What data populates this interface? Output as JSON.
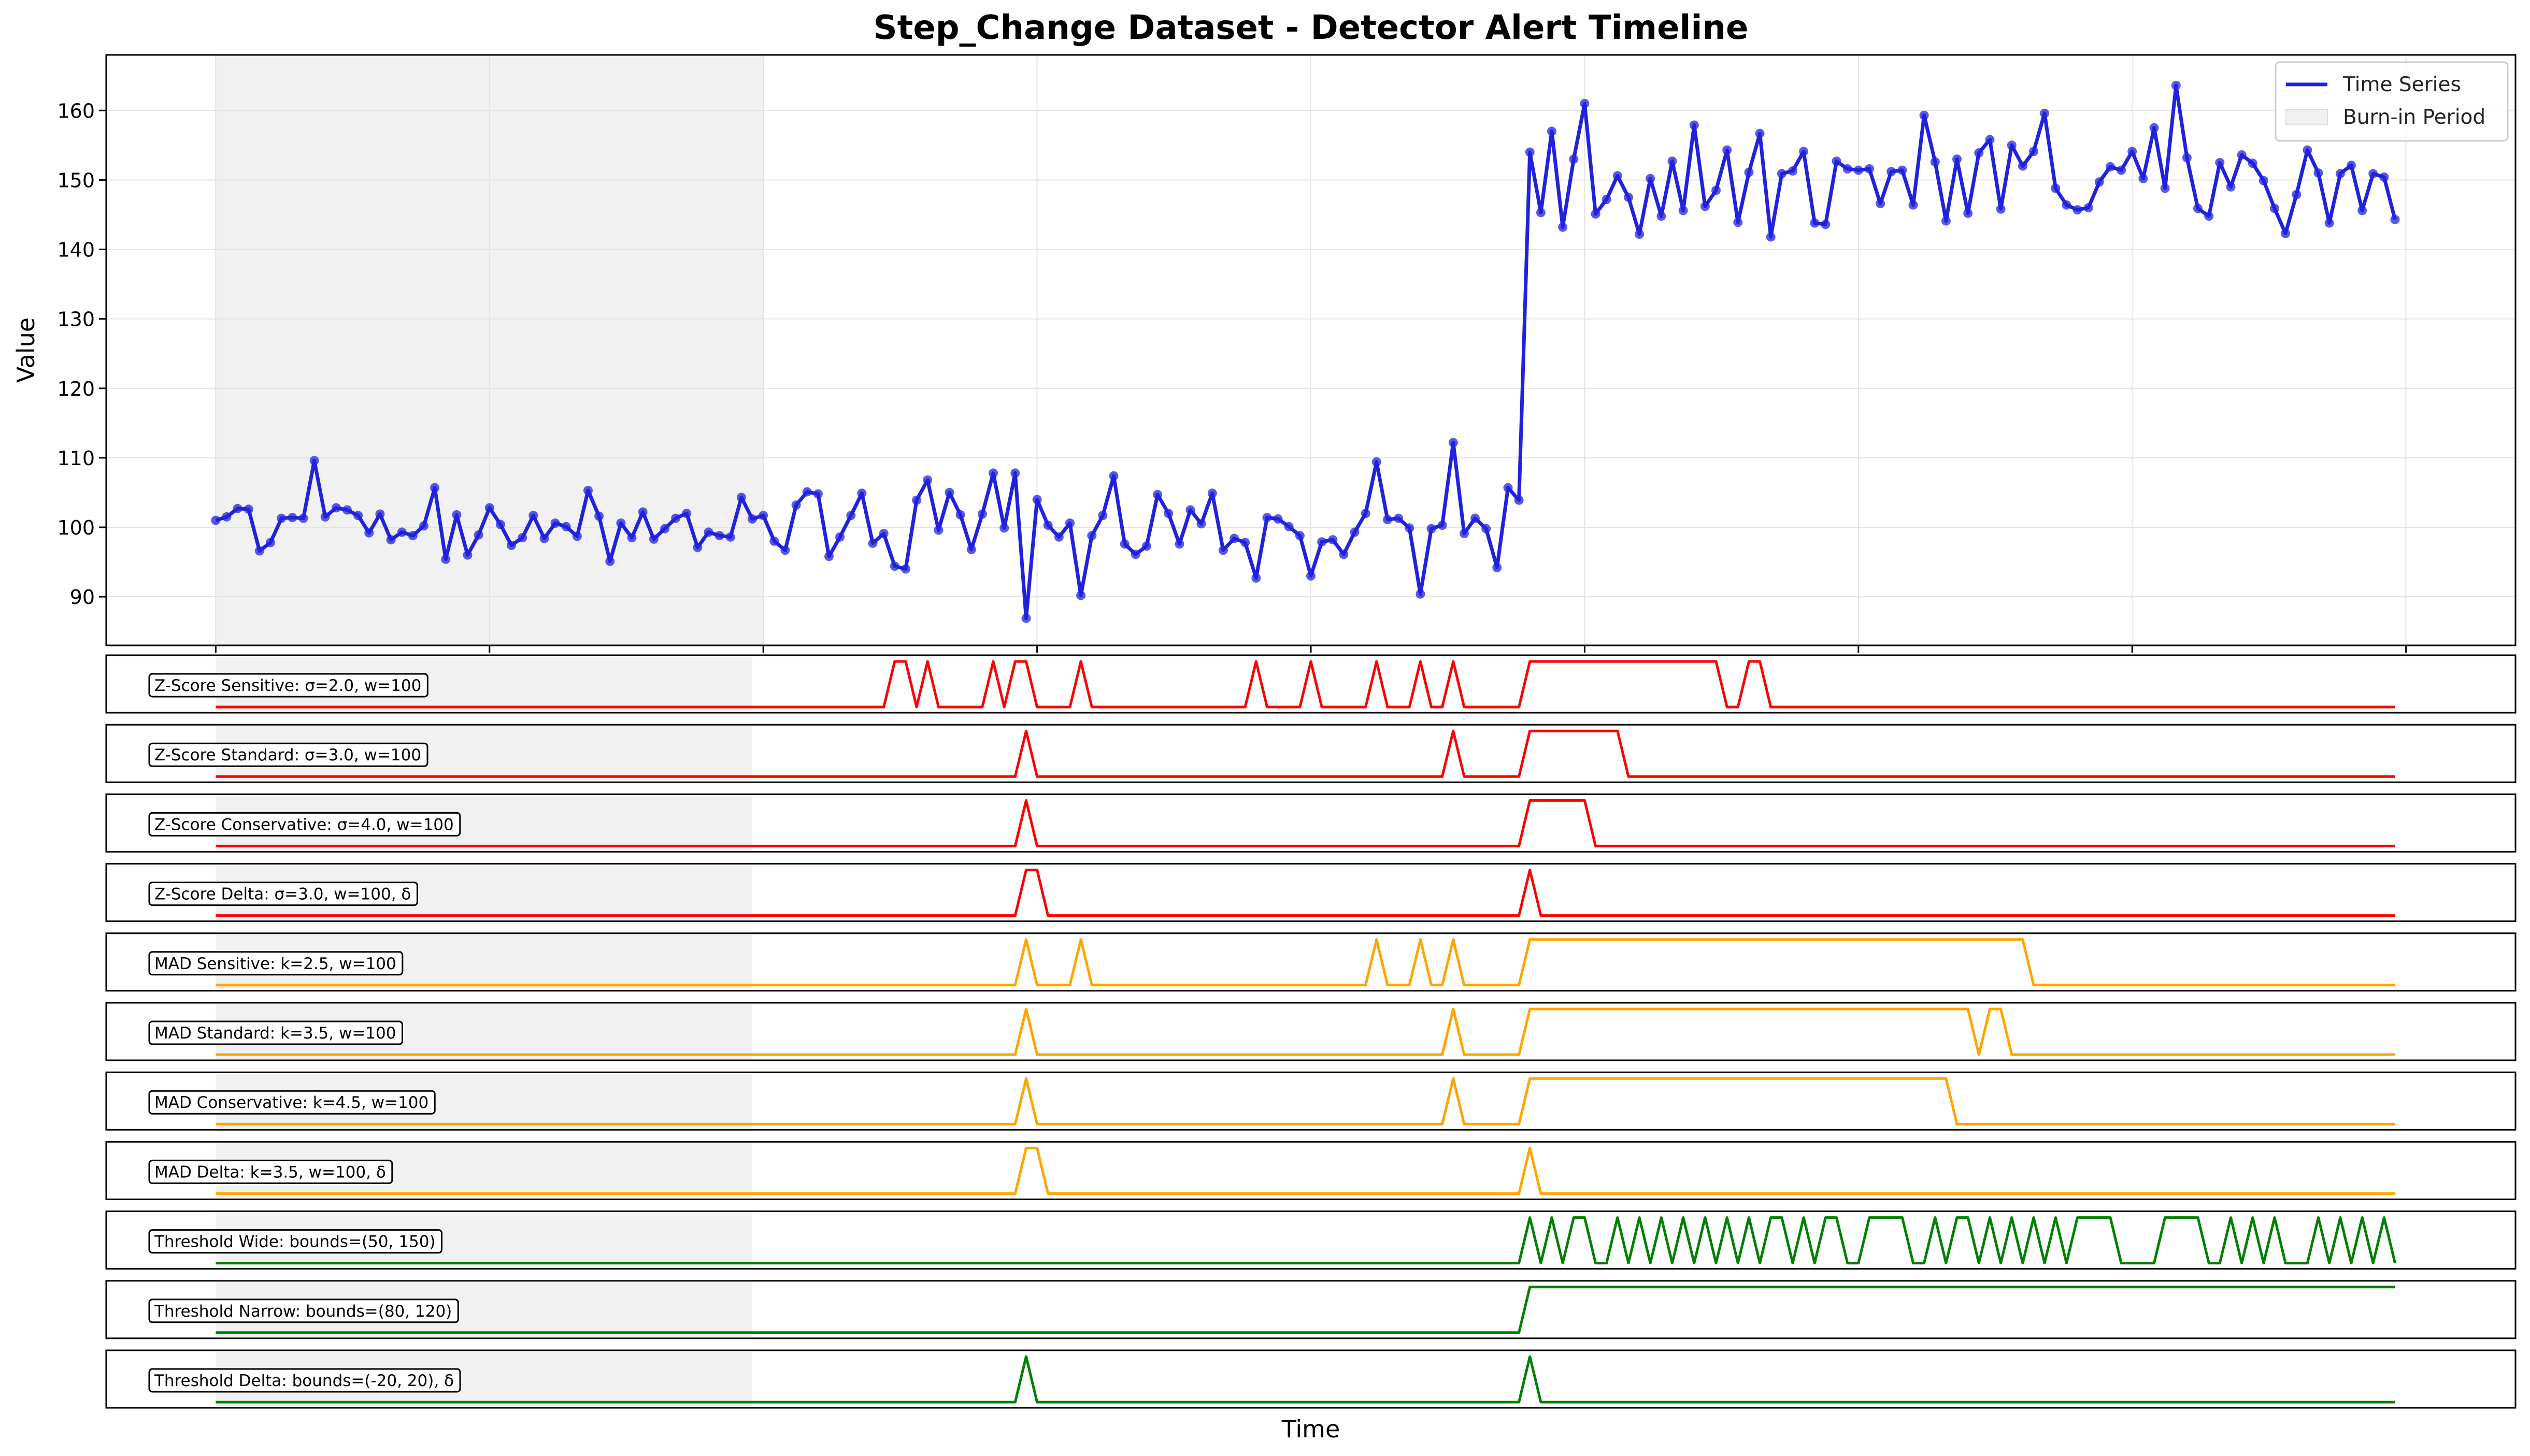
{
  "figure": {
    "title": "Step_Change Dataset - Detector Alert Timeline",
    "xlabel": "Time"
  },
  "chart_data": {
    "type": "line",
    "title": "Step_Change Dataset - Detector Alert Timeline",
    "xlabel": "Time",
    "ylabel": "Value",
    "xlim": [
      -10,
      210
    ],
    "ylim": [
      83,
      168
    ],
    "yticks": [
      90,
      100,
      110,
      120,
      130,
      140,
      150,
      160
    ],
    "x_gridlines": [
      0,
      25,
      50,
      75,
      100,
      125,
      150,
      175,
      200
    ],
    "grid": true,
    "legend_position": "top-right",
    "legend": [
      {
        "label": "Time Series",
        "color": "#2121e0",
        "kind": "line"
      },
      {
        "label": "Burn-in Period",
        "color": "#f1f1f1",
        "kind": "patch"
      }
    ],
    "burn_in": {
      "start": 0,
      "end": 50
    },
    "series": [
      {
        "name": "Time Series",
        "color": "#2121e0",
        "x_start": 0,
        "x_step": 1,
        "values": [
          101,
          101.5,
          102.7,
          102.6,
          96.6,
          97.8,
          101.3,
          101.4,
          101.3,
          109.6,
          101.5,
          102.8,
          102.5,
          101.7,
          99.2,
          101.9,
          98.2,
          99.3,
          98.8,
          100.2,
          105.7,
          95.4,
          101.8,
          96.0,
          98.9,
          102.8,
          100.4,
          97.4,
          98.5,
          101.7,
          98.4,
          100.6,
          100.1,
          98.7,
          105.3,
          101.6,
          95.1,
          100.6,
          98.5,
          102.2,
          98.3,
          99.8,
          101.3,
          102.0,
          97.1,
          99.3,
          98.8,
          98.6,
          104.3,
          101.2,
          101.7,
          98.0,
          96.7,
          103.2,
          105.1,
          104.8,
          95.8,
          98.6,
          101.7,
          104.9,
          97.7,
          99.1,
          94.4,
          94.0,
          103.9,
          106.8,
          99.6,
          105.0,
          101.8,
          96.8,
          101.9,
          107.8,
          99.9,
          107.8,
          86.9,
          104.0,
          100.3,
          98.6,
          100.6,
          90.2,
          98.8,
          101.7,
          107.4,
          97.6,
          96.1,
          97.3,
          104.7,
          102.0,
          97.6,
          102.5,
          100.5,
          104.9,
          96.7,
          98.4,
          97.8,
          92.7,
          101.4,
          101.2,
          100.1,
          98.8,
          93.0,
          97.9,
          98.2,
          96.1,
          99.3,
          102.0,
          109.4,
          101.1,
          101.3,
          99.9,
          90.4,
          99.8,
          100.3,
          112.2,
          99.1,
          101.3,
          99.8,
          94.2,
          105.7,
          103.9,
          154.0,
          145.3,
          157.0,
          143.2,
          153.0,
          161.0,
          145.1,
          147.2,
          150.6,
          147.5,
          142.2,
          150.2,
          144.8,
          152.7,
          145.6,
          157.9,
          146.2,
          148.5,
          154.3,
          143.9,
          151.1,
          156.7,
          141.8,
          150.9,
          151.3,
          154.1,
          143.8,
          143.6,
          152.7,
          151.6,
          151.4,
          151.6,
          146.6,
          151.2,
          151.4,
          146.4,
          159.3,
          152.6,
          144.1,
          153.0,
          145.2,
          153.9,
          155.8,
          145.8,
          155.0,
          152.0,
          154.1,
          159.6,
          148.8,
          146.4,
          145.7,
          146.0,
          149.7,
          151.9,
          151.4,
          154.1,
          150.2,
          157.5,
          148.8,
          163.6,
          153.2,
          145.9,
          144.8,
          152.5,
          149.0,
          153.6,
          152.4,
          149.9,
          145.9,
          142.3,
          147.9,
          154.3,
          151.0,
          143.8,
          150.9,
          152.1,
          145.6,
          150.9,
          150.4,
          144.3
        ]
      }
    ],
    "alert_panels": [
      {
        "label": "Z-Score Sensitive: σ=2.0, w=100",
        "color": "#ff0000",
        "alerts": [
          [
            62,
            63
          ],
          [
            65,
            65
          ],
          [
            71,
            71
          ],
          [
            73,
            74
          ],
          [
            79,
            79
          ],
          [
            95,
            95
          ],
          [
            100,
            100
          ],
          [
            106,
            106
          ],
          [
            110,
            110
          ],
          [
            113,
            113
          ],
          [
            120,
            137
          ],
          [
            140,
            141
          ]
        ]
      },
      {
        "label": "Z-Score Standard: σ=3.0, w=100",
        "color": "#ff0000",
        "alerts": [
          [
            74,
            74
          ],
          [
            113,
            113
          ],
          [
            120,
            128
          ]
        ]
      },
      {
        "label": "Z-Score Conservative: σ=4.0, w=100",
        "color": "#ff0000",
        "alerts": [
          [
            74,
            74
          ],
          [
            120,
            125
          ]
        ]
      },
      {
        "label": "Z-Score Delta: σ=3.0, w=100, δ",
        "color": "#ff0000",
        "alerts": [
          [
            74,
            75
          ],
          [
            120,
            120
          ]
        ]
      },
      {
        "label": "MAD Sensitive: k=2.5, w=100",
        "color": "#ffa500",
        "alerts": [
          [
            74,
            74
          ],
          [
            79,
            79
          ],
          [
            106,
            106
          ],
          [
            110,
            110
          ],
          [
            113,
            113
          ],
          [
            120,
            165
          ]
        ]
      },
      {
        "label": "MAD Standard: k=3.5, w=100",
        "color": "#ffa500",
        "alerts": [
          [
            74,
            74
          ],
          [
            113,
            113
          ],
          [
            120,
            160
          ],
          [
            162,
            163
          ]
        ]
      },
      {
        "label": "MAD Conservative: k=4.5, w=100",
        "color": "#ffa500",
        "alerts": [
          [
            74,
            74
          ],
          [
            113,
            113
          ],
          [
            120,
            158
          ]
        ]
      },
      {
        "label": "MAD Delta: k=3.5, w=100, δ",
        "color": "#ffa500",
        "alerts": [
          [
            74,
            75
          ],
          [
            120,
            120
          ]
        ]
      },
      {
        "label": "Threshold Wide: bounds=(50, 150)",
        "color": "#008000",
        "alerts": [
          [
            120,
            120
          ],
          [
            122,
            122
          ],
          [
            124,
            125
          ],
          [
            128,
            128
          ],
          [
            130,
            130
          ],
          [
            132,
            132
          ],
          [
            134,
            134
          ],
          [
            136,
            136
          ],
          [
            138,
            138
          ],
          [
            140,
            140
          ],
          [
            142,
            143
          ],
          [
            145,
            145
          ],
          [
            147,
            148
          ],
          [
            151,
            154
          ],
          [
            157,
            157
          ],
          [
            159,
            160
          ],
          [
            162,
            162
          ],
          [
            164,
            164
          ],
          [
            166,
            166
          ],
          [
            168,
            168
          ],
          [
            170,
            173
          ],
          [
            178,
            181
          ],
          [
            184,
            184
          ],
          [
            186,
            186
          ],
          [
            188,
            188
          ],
          [
            192,
            192
          ],
          [
            194,
            194
          ],
          [
            196,
            196
          ],
          [
            198,
            198
          ]
        ]
      },
      {
        "label": "Threshold Narrow: bounds=(80, 120)",
        "color": "#008000",
        "alerts": [
          [
            120,
            199
          ]
        ]
      },
      {
        "label": "Threshold Delta: bounds=(-20, 20), δ",
        "color": "#008000",
        "alerts": [
          [
            74,
            74
          ],
          [
            120,
            120
          ]
        ]
      }
    ]
  }
}
